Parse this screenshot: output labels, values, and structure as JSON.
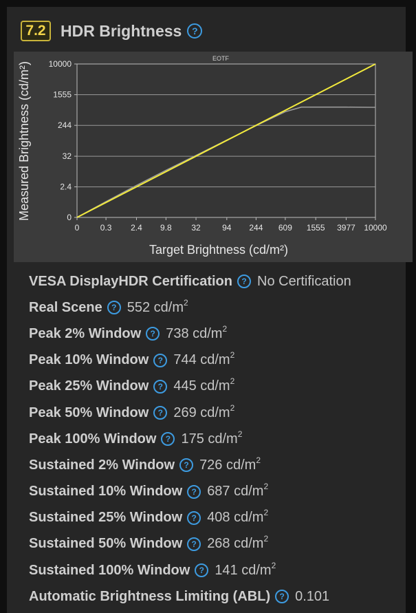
{
  "section": {
    "score": "7.2",
    "title": "HDR Brightness",
    "help_icon": "question-circle-icon"
  },
  "chart_data": {
    "type": "line",
    "title": "EOTF",
    "xlabel": "Target Brightness (cd/m²)",
    "ylabel": "Measured Brightness (cd/m²)",
    "x_ticks": [
      "0",
      "0.3",
      "2.4",
      "9.8",
      "32",
      "94",
      "244",
      "609",
      "1555",
      "3977",
      "10000"
    ],
    "y_ticks": [
      "0",
      "2.4",
      "32",
      "244",
      "1555",
      "10000"
    ],
    "xlim": [
      0,
      10000
    ],
    "ylim": [
      0,
      10000
    ],
    "grid": "horizontal",
    "series": [
      {
        "color": "#f2ea3c",
        "x": [
          0,
          10000
        ],
        "y": [
          0,
          10000
        ]
      },
      {
        "color": "#9a9a9a",
        "x": [
          0,
          0.3,
          2.4,
          9.8,
          32,
          94,
          244,
          609,
          1000,
          1555,
          3977,
          10000
        ],
        "y": [
          0,
          0.35,
          2.8,
          11,
          34,
          96,
          240,
          560,
          740,
          740,
          740,
          730
        ]
      }
    ]
  },
  "rows": [
    {
      "label": "VESA DisplayHDR Certification",
      "value": "No Certification",
      "unit": ""
    },
    {
      "label": "Real Scene",
      "value": "552 cd/m",
      "unit": "2"
    },
    {
      "label": "Peak 2% Window",
      "value": "738 cd/m",
      "unit": "2"
    },
    {
      "label": "Peak 10% Window",
      "value": "744 cd/m",
      "unit": "2"
    },
    {
      "label": "Peak 25% Window",
      "value": "445 cd/m",
      "unit": "2"
    },
    {
      "label": "Peak 50% Window",
      "value": "269 cd/m",
      "unit": "2"
    },
    {
      "label": "Peak 100% Window",
      "value": "175 cd/m",
      "unit": "2"
    },
    {
      "label": "Sustained 2% Window",
      "value": "726 cd/m",
      "unit": "2"
    },
    {
      "label": "Sustained 10% Window",
      "value": "687 cd/m",
      "unit": "2"
    },
    {
      "label": "Sustained 25% Window",
      "value": "408 cd/m",
      "unit": "2"
    },
    {
      "label": "Sustained 50% Window",
      "value": "268 cd/m",
      "unit": "2"
    },
    {
      "label": "Sustained 100% Window",
      "value": "141 cd/m",
      "unit": "2"
    },
    {
      "label": "Automatic Brightness Limiting (ABL)",
      "value": "0.101",
      "unit": ""
    }
  ]
}
